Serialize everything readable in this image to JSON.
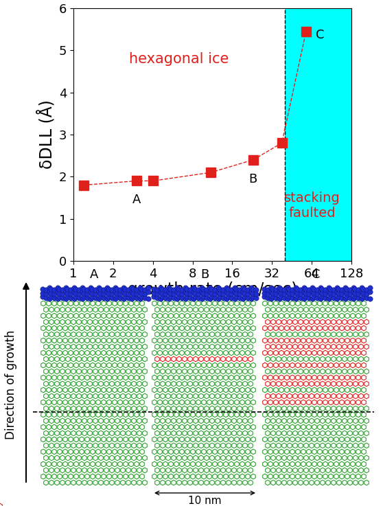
{
  "chart_data": {
    "type": "line",
    "x_label": "growth rate (cm/sec)",
    "y_label": "δDLL (Å)",
    "log": "x",
    "x": [
      1.2,
      3,
      4,
      11,
      23,
      38,
      58
    ],
    "values": [
      1.8,
      1.9,
      1.9,
      2.1,
      2.4,
      2.8,
      5.45
    ],
    "point_labels": [
      null,
      "A",
      null,
      null,
      "B",
      null,
      "C"
    ],
    "color": "#e0201b",
    "marker": "square",
    "line_style": "dashed",
    "xlim": [
      1,
      128
    ],
    "xticks": [
      1,
      2,
      4,
      8,
      16,
      32,
      64,
      128
    ],
    "ylim": [
      0,
      6
    ],
    "yticks": [
      0,
      1,
      2,
      3,
      4,
      5,
      6
    ],
    "annotations": [
      "hexagonal ice"
    ],
    "region": {
      "label": "stacking\nfaulted",
      "x_range": [
        40,
        128
      ],
      "color": "#00ffff"
    }
  },
  "snapshots": {
    "panels": [
      "A",
      "B",
      "C"
    ],
    "growth_label": "Direction of growth",
    "scale_label": "10 nm"
  }
}
